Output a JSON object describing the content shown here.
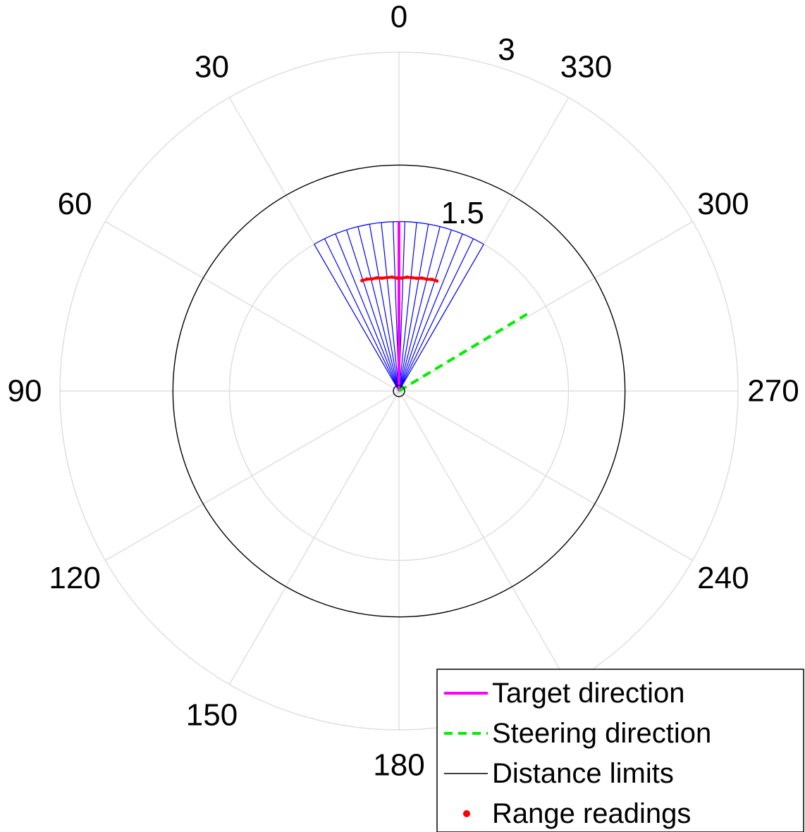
{
  "chart_data": {
    "type": "polar",
    "theta_direction": "counterclockwise",
    "theta_zero": "top",
    "theta_ticks": [
      0,
      30,
      60,
      90,
      120,
      150,
      180,
      240,
      270,
      300,
      330
    ],
    "theta_tick_labels": [
      "0",
      "30",
      "60",
      "90",
      "120",
      "150",
      "180",
      "240",
      "270",
      "300",
      "330"
    ],
    "theta_grid_angles": [
      0,
      30,
      60,
      90,
      120,
      150,
      180,
      210,
      240,
      270,
      300,
      330
    ],
    "r_ticks": [
      1.5,
      3
    ],
    "r_tick_labels": [
      "1.5",
      "3"
    ],
    "rlim": [
      0,
      3
    ],
    "r_label_angle_deg": 345,
    "grid": true,
    "sensor": {
      "beam_count": 16,
      "fov_deg": [
        -30,
        30
      ],
      "max_range": 1.5
    },
    "series": [
      {
        "name": "Target direction",
        "kind": "line",
        "color": "#ff00ff",
        "style": "solid",
        "theta": [
          0,
          0
        ],
        "r": [
          0,
          1.5
        ]
      },
      {
        "name": "Steering direction",
        "kind": "line",
        "color": "#00ee00",
        "style": "dashed",
        "theta": [
          301,
          301
        ],
        "r": [
          0,
          1.34
        ]
      },
      {
        "name": "Distance limits",
        "kind": "circle",
        "color": "#000000",
        "r": [
          0.05,
          2
        ]
      },
      {
        "name": "Range readings",
        "kind": "points",
        "color": "#ff0000",
        "theta": [
          -19,
          -16.5,
          -14,
          -11.5,
          -9,
          -6.5,
          -4,
          -1.5,
          1,
          3.5,
          6,
          8.5,
          11,
          13.5,
          16,
          18.5
        ],
        "r": [
          1.03,
          1.03,
          1.02,
          1.02,
          1.01,
          1.01,
          1.01,
          1.0,
          1.0,
          1.01,
          1.01,
          1.01,
          1.02,
          1.02,
          1.03,
          1.03
        ]
      }
    ],
    "legend": {
      "placement": "bottom-right",
      "entries": [
        "Target direction",
        "Steering direction",
        "Distance limits",
        "Range readings"
      ]
    }
  }
}
